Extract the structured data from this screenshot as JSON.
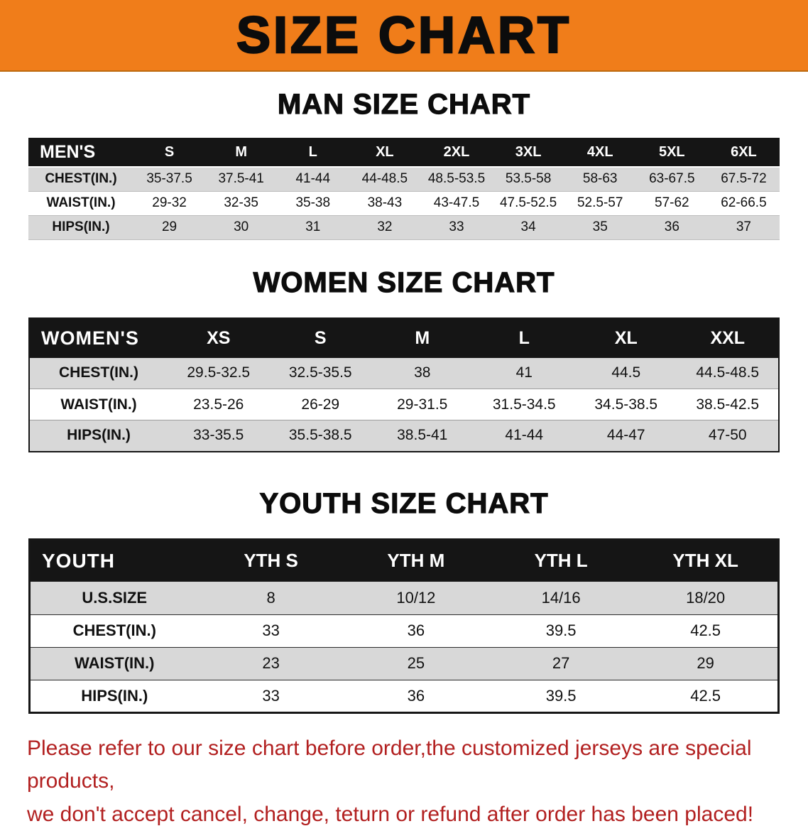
{
  "banner": {
    "title": "SIZE CHART"
  },
  "colors": {
    "banner_bg": "#f07d1a",
    "header_bg": "#151515",
    "row_alt_bg": "#d8d8d8",
    "row_bg": "#ffffff",
    "disclaimer_text": "#b22020"
  },
  "sections": [
    {
      "heading": "MAN SIZE CHART",
      "table": {
        "label": "MEN'S",
        "columns": [
          "S",
          "M",
          "L",
          "XL",
          "2XL",
          "3XL",
          "4XL",
          "5XL",
          "6XL"
        ],
        "rows": [
          {
            "label": "CHEST(IN.)",
            "values": [
              "35-37.5",
              "37.5-41",
              "41-44",
              "44-48.5",
              "48.5-53.5",
              "53.5-58",
              "58-63",
              "63-67.5",
              "67.5-72"
            ]
          },
          {
            "label": "WAIST(IN.)",
            "values": [
              "29-32",
              "32-35",
              "35-38",
              "38-43",
              "43-47.5",
              "47.5-52.5",
              "52.5-57",
              "57-62",
              "62-66.5"
            ]
          },
          {
            "label": "HIPS(IN.)",
            "values": [
              "29",
              "30",
              "31",
              "32",
              "33",
              "34",
              "35",
              "36",
              "37"
            ]
          }
        ]
      }
    },
    {
      "heading": "WOMEN SIZE CHART",
      "table": {
        "label": "WOMEN'S",
        "columns": [
          "XS",
          "S",
          "M",
          "L",
          "XL",
          "XXL"
        ],
        "rows": [
          {
            "label": "CHEST(IN.)",
            "values": [
              "29.5-32.5",
              "32.5-35.5",
              "38",
              "41",
              "44.5",
              "44.5-48.5"
            ]
          },
          {
            "label": "WAIST(IN.)",
            "values": [
              "23.5-26",
              "26-29",
              "29-31.5",
              "31.5-34.5",
              "34.5-38.5",
              "38.5-42.5"
            ]
          },
          {
            "label": "HIPS(IN.)",
            "values": [
              "33-35.5",
              "35.5-38.5",
              "38.5-41",
              "41-44",
              "44-47",
              "47-50"
            ]
          }
        ]
      }
    },
    {
      "heading": "YOUTH SIZE CHART",
      "table": {
        "label": "YOUTH",
        "columns": [
          "YTH S",
          "YTH M",
          "YTH L",
          "YTH XL"
        ],
        "rows": [
          {
            "label": "U.S.SIZE",
            "values": [
              "8",
              "10/12",
              "14/16",
              "18/20"
            ]
          },
          {
            "label": "CHEST(IN.)",
            "values": [
              "33",
              "36",
              "39.5",
              "42.5"
            ]
          },
          {
            "label": "WAIST(IN.)",
            "values": [
              "23",
              "25",
              "27",
              "29"
            ]
          },
          {
            "label": "HIPS(IN.)",
            "values": [
              "33",
              "36",
              "39.5",
              "42.5"
            ]
          }
        ]
      }
    }
  ],
  "disclaimer": {
    "line1": "Please refer to our size chart before order,the customized jerseys are special products,",
    "line2": "we don't accept cancel, change, teturn or refund after order has been placed!"
  }
}
